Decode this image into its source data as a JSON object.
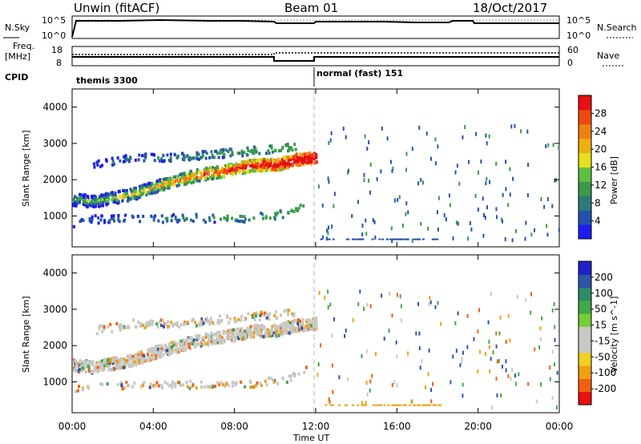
{
  "header": {
    "station": "Unwin (fitACF)",
    "beam": "Beam 01",
    "date": "18/Oct/2017"
  },
  "noise_panel": {
    "left_label": "N.Sky",
    "right_label": "N.Search",
    "left_ticks": [
      "10^5",
      "10^0"
    ],
    "right_ticks": [
      "10^5",
      "10^0"
    ]
  },
  "freq_panel": {
    "left_label_1": "Freq.",
    "left_label_2": "[MHz]",
    "left_ticks": [
      "18",
      "8"
    ],
    "right_label": "Nave",
    "right_ticks": [
      "60",
      "0"
    ],
    "cpid_label": "CPID"
  },
  "cpid": [
    {
      "name": "themis 3300",
      "start_hour": 0,
      "end_hour": 12
    },
    {
      "name": "normal (fast) 151",
      "start_hour": 12,
      "end_hour": 24
    }
  ],
  "x_axis": {
    "label": "Time UT",
    "ticks": [
      "00:00",
      "04:00",
      "08:00",
      "12:00",
      "16:00",
      "20:00",
      "00:00"
    ]
  },
  "power_panel": {
    "ylabel": "Slant Range [km]",
    "yticks": [
      "1000",
      "2000",
      "3000",
      "4000"
    ],
    "colorbar_label": "Power [dB]",
    "colorbar_ticks": [
      "4",
      "8",
      "12",
      "16",
      "20",
      "24",
      "28"
    ],
    "colors": [
      "#1c1cf0",
      "#2452b0",
      "#2e7a7a",
      "#3a9a4a",
      "#60c040",
      "#e8e020",
      "#f0b010",
      "#f08010",
      "#f04810",
      "#e81010"
    ]
  },
  "velocity_panel": {
    "ylabel": "Slant Range [km]",
    "yticks": [
      "1000",
      "2000",
      "3000",
      "4000"
    ],
    "colorbar_label": "Velocity [m s^-1]",
    "colorbar_ticks": [
      "200",
      "100",
      "50",
      "15",
      "-15",
      "-50",
      "-100",
      "-200"
    ],
    "colors": [
      "#2020c8",
      "#2d55a8",
      "#2f8a6a",
      "#3fa848",
      "#78cc38",
      "#c8c8c4",
      "#c8c8c4",
      "#f0d020",
      "#f0a010",
      "#f06010",
      "#e81010"
    ]
  },
  "chart_data": {
    "type": "heatmap",
    "x": {
      "unit": "hours UT",
      "range": [
        0,
        24
      ]
    },
    "y": {
      "unit": "km",
      "range": [
        150,
        4500
      ]
    },
    "scatter_bands": [
      {
        "name": "main",
        "points": [
          [
            0.0,
            1450
          ],
          [
            1.0,
            1400
          ],
          [
            2.0,
            1500
          ],
          [
            3.0,
            1600
          ],
          [
            4.0,
            1800
          ],
          [
            5.0,
            1950
          ],
          [
            6.0,
            2100
          ],
          [
            7.0,
            2200
          ],
          [
            8.0,
            2300
          ],
          [
            9.0,
            2400
          ],
          [
            10.0,
            2400
          ],
          [
            11.0,
            2550
          ],
          [
            12.0,
            2600
          ]
        ]
      },
      {
        "name": "upper",
        "points": [
          [
            1.0,
            2400
          ],
          [
            3.0,
            2600
          ],
          [
            5.0,
            2600
          ],
          [
            7.0,
            2700
          ],
          [
            9.0,
            2800
          ],
          [
            11.0,
            2900
          ]
        ]
      },
      {
        "name": "lower",
        "points": [
          [
            0.0,
            650
          ],
          [
            0.5,
            900
          ],
          [
            9.0,
            950
          ],
          [
            10.5,
            1050
          ],
          [
            11.5,
            1300
          ]
        ]
      }
    ]
  }
}
